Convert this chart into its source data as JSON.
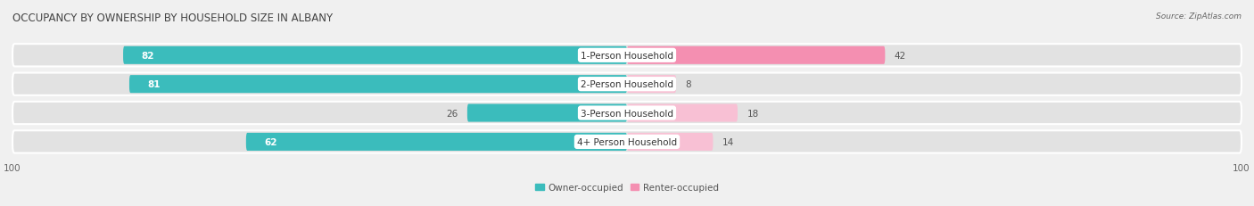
{
  "title": "OCCUPANCY BY OWNERSHIP BY HOUSEHOLD SIZE IN ALBANY",
  "source": "Source: ZipAtlas.com",
  "categories": [
    "1-Person Household",
    "2-Person Household",
    "3-Person Household",
    "4+ Person Household"
  ],
  "owner_values": [
    82,
    81,
    26,
    62
  ],
  "renter_values": [
    42,
    8,
    18,
    14
  ],
  "owner_color": "#3bbcbc",
  "renter_color": "#f48fb1",
  "renter_color_light": "#f8c0d4",
  "axis_max": 100,
  "bar_height": 0.62,
  "bg_color": "#f0f0f0",
  "row_bg_color": "#e2e2e2",
  "title_fontsize": 8.5,
  "label_fontsize": 7.5,
  "tick_fontsize": 7.5,
  "legend_fontsize": 7.5,
  "value_fontsize": 7.5,
  "source_fontsize": 6.5
}
